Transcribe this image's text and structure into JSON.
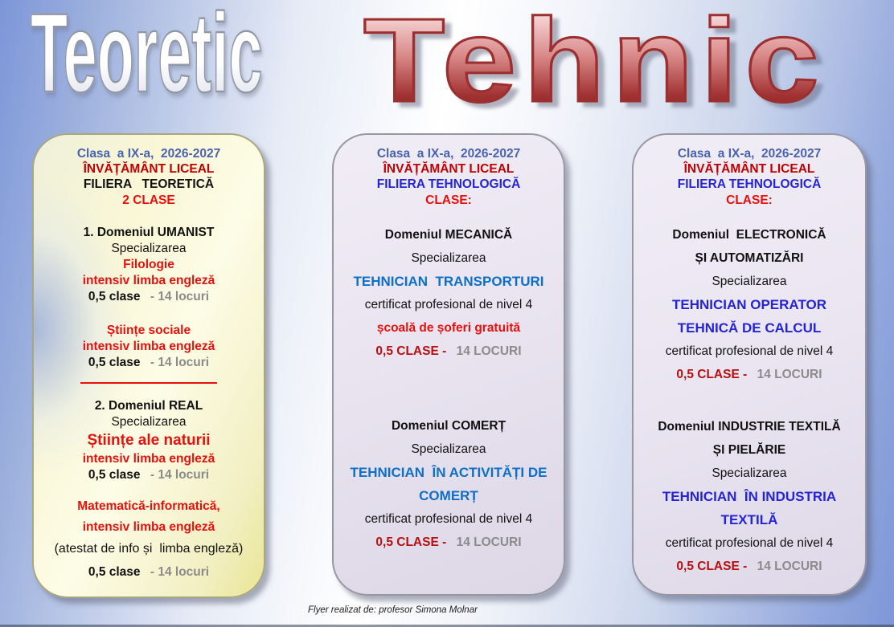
{
  "titles": {
    "teoretic": "Teoretic",
    "tehnic": "Tehnic"
  },
  "footer": {
    "credit": "Flyer realizat de: profesor Simona Molnar"
  },
  "colors": {
    "header_blue": "#4a63ae",
    "dark_red": "#c00000",
    "red": "#e8100c",
    "azure_blue": "#0d6fc8",
    "royal_blue": "#2424d6",
    "gray": "#8b8b8b",
    "tehnic_title_red": "#a33333",
    "teoretic_card_yellow": "#f9f7d6",
    "tehnic_card_lavender": "#e9e4f0"
  },
  "cards": {
    "teoretic": {
      "clasa": "Clasa  a IX-a,  2026-2027",
      "invatamant": "ÎNVĂȚĂMÂNT LICEAL",
      "filiera": "FILIERA   TEORETICĂ",
      "clase": "2 CLASE",
      "domeniu1": "1. Domeniul UMANIST",
      "specializarea1": "Specializarea",
      "spec1_nume": "Filologie",
      "spec1_intensiv": "intensiv limba engleză",
      "spec1_clase": "0,5 clase",
      "spec1_locuri": "- 14 locuri",
      "spec2_nume": "Științe sociale",
      "spec2_intensiv": "intensiv limba engleză",
      "spec2_clase": "0,5 clase",
      "spec2_locuri": "- 14 locuri",
      "domeniu2": "2. Domeniul REAL",
      "specializarea2": "Specializarea",
      "spec3_nume": "Științe ale naturii",
      "spec3_intensiv": "intensiv limba engleză",
      "spec3_clase": "0,5 clase",
      "spec3_locuri": "- 14 locuri",
      "spec4_nume": "Matematică-informatică,",
      "spec4_intensiv": "intensiv limba engleză",
      "spec4_atestat": "(atestat de info și  limba engleză)",
      "spec4_clase": "0,5 clase",
      "spec4_locuri": "- 14 locuri"
    },
    "mecanica": {
      "clasa": "Clasa  a IX-a,  2026-2027",
      "invatamant": "ÎNVĂȚĂMÂNT LICEAL",
      "filiera": "FILIERA TEHNOLOGICĂ",
      "clase": "CLASE:",
      "domeniu1": "Domeniul MECANICĂ",
      "specializarea1": "Specializarea",
      "spec1_nume": "TEHNICIAN  TRANSPORTURI",
      "spec1_certificat": "certificat profesional de nivel 4",
      "spec1_bonus": "școală de șoferi gratuită",
      "spec1_clase": "0,5 CLASE -",
      "spec1_locuri": "14 LOCURI",
      "domeniu2": "Domeniul COMERȚ",
      "specializarea2": "Specializarea",
      "spec2_nume_l1": "TEHNICIAN  ÎN ACTIVITĂȚI DE",
      "spec2_nume_l2": "COMERȚ",
      "spec2_certificat": "certificat profesional de nivel 4",
      "spec2_clase": "0,5 CLASE -",
      "spec2_locuri": "14 LOCURI"
    },
    "electronica": {
      "clasa": "Clasa  a IX-a,  2026-2027",
      "invatamant": "ÎNVĂȚĂMÂNT LICEAL",
      "filiera": "FILIERA TEHNOLOGICĂ",
      "clase": "CLASE:",
      "domeniu1_l1": "Domeniul  ELECTRONICĂ",
      "domeniu1_l2": "ȘI AUTOMATIZĂRI",
      "specializarea1": "Specializarea",
      "spec1_nume_l1": "TEHNICIAN OPERATOR",
      "spec1_nume_l2": "TEHNICĂ DE CALCUL",
      "spec1_certificat": "certificat profesional de nivel 4",
      "spec1_clase": "0,5 CLASE -",
      "spec1_locuri": "14 LOCURI",
      "domeniu2_l1": "Domeniul INDUSTRIE TEXTILĂ",
      "domeniu2_l2": "ȘI PIELĂRIE",
      "specializarea2": "Specializarea",
      "spec2_nume_l1": "TEHNICIAN  ÎN INDUSTRIA",
      "spec2_nume_l2": "TEXTILĂ",
      "spec2_certificat": "certificat profesional de nivel 4",
      "spec2_clase": "0,5 CLASE -",
      "spec2_locuri": "14 LOCURI"
    }
  }
}
